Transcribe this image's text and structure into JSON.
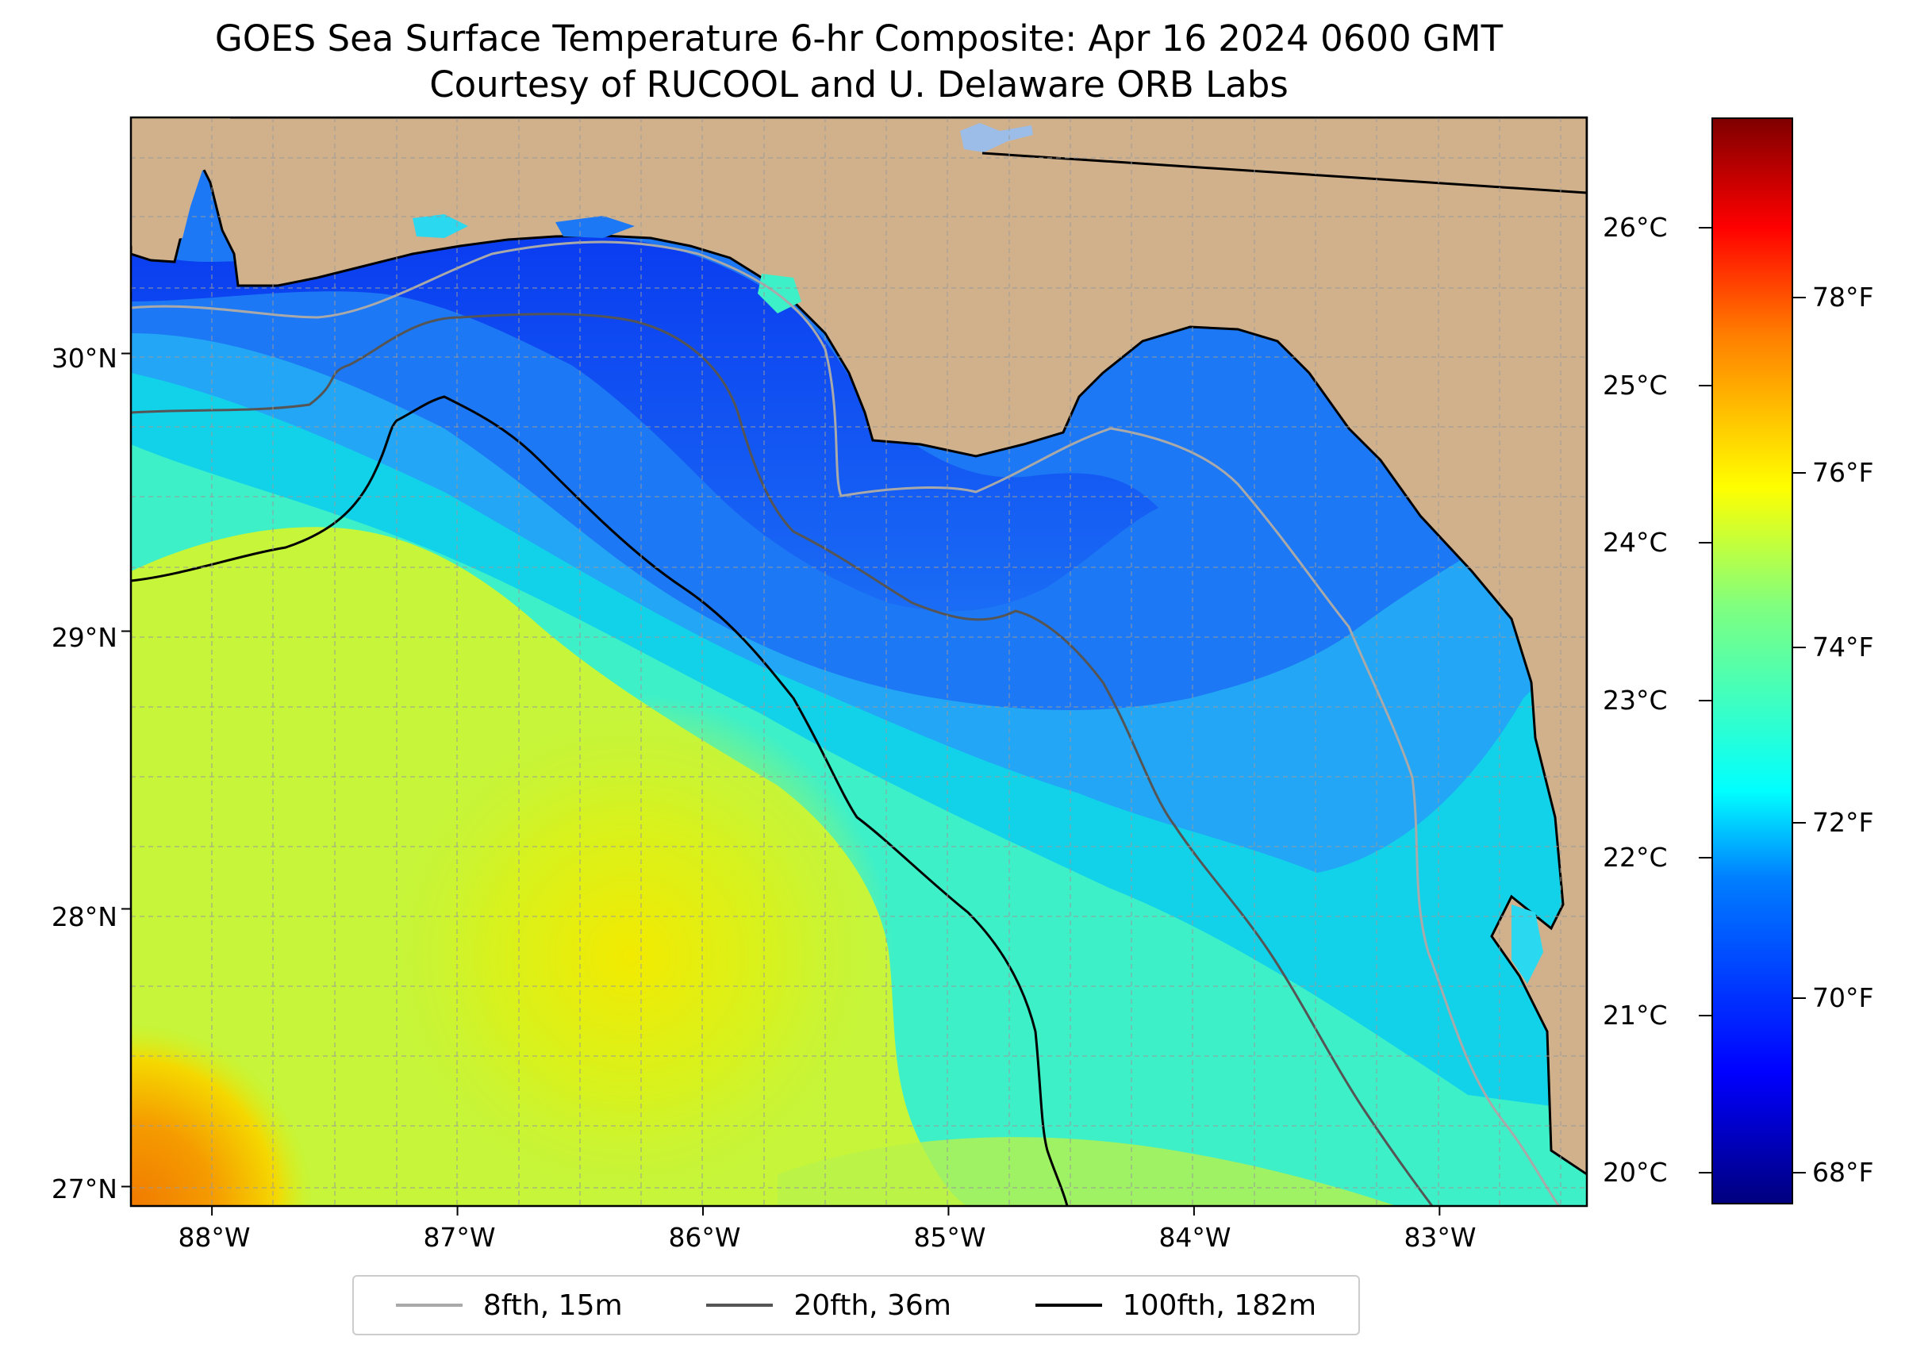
{
  "title": {
    "line1": "GOES Sea Surface Temperature 6-hr Composite: Apr 16 2024 0600 GMT",
    "line2": "Courtesy of RUCOOL and U. Delaware ORB Labs"
  },
  "map": {
    "lon_range": [
      -88.33,
      -82.4
    ],
    "lat_range": [
      26.93,
      30.85
    ],
    "gridlines": true,
    "land_color": "#d0b18c",
    "coastline_color": "#000000",
    "lat_ticks": [
      {
        "value": 30,
        "label": "30°N"
      },
      {
        "value": 29,
        "label": "29°N"
      },
      {
        "value": 28,
        "label": "28°N"
      },
      {
        "value": 27,
        "label": "27°N"
      }
    ],
    "lon_ticks": [
      {
        "value": -88,
        "label": "88°W"
      },
      {
        "value": -87,
        "label": "87°W"
      },
      {
        "value": -86,
        "label": "86°W"
      },
      {
        "value": -85,
        "label": "85°W"
      },
      {
        "value": -84,
        "label": "84°W"
      },
      {
        "value": -83,
        "label": "83°W"
      }
    ]
  },
  "colorbar": {
    "colormap": "jet",
    "celsius_range": [
      19.8,
      26.7
    ],
    "celsius_ticks": [
      {
        "value": 26,
        "label": "26°C"
      },
      {
        "value": 25,
        "label": "25°C"
      },
      {
        "value": 24,
        "label": "24°C"
      },
      {
        "value": 23,
        "label": "23°C"
      },
      {
        "value": 22,
        "label": "22°C"
      },
      {
        "value": 21,
        "label": "21°C"
      },
      {
        "value": 20,
        "label": "20°C"
      }
    ],
    "fahrenheit_ticks": [
      {
        "value": 78,
        "label": "78°F"
      },
      {
        "value": 76,
        "label": "76°F"
      },
      {
        "value": 74,
        "label": "74°F"
      },
      {
        "value": 72,
        "label": "72°F"
      },
      {
        "value": 70,
        "label": "70°F"
      },
      {
        "value": 68,
        "label": "68°F"
      }
    ]
  },
  "legend": {
    "items": [
      {
        "label": "8fth, 15m",
        "color": "#a9a9a9"
      },
      {
        "label": "20fth, 36m",
        "color": "#555555"
      },
      {
        "label": "100fth, 182m",
        "color": "#000000"
      }
    ]
  }
}
